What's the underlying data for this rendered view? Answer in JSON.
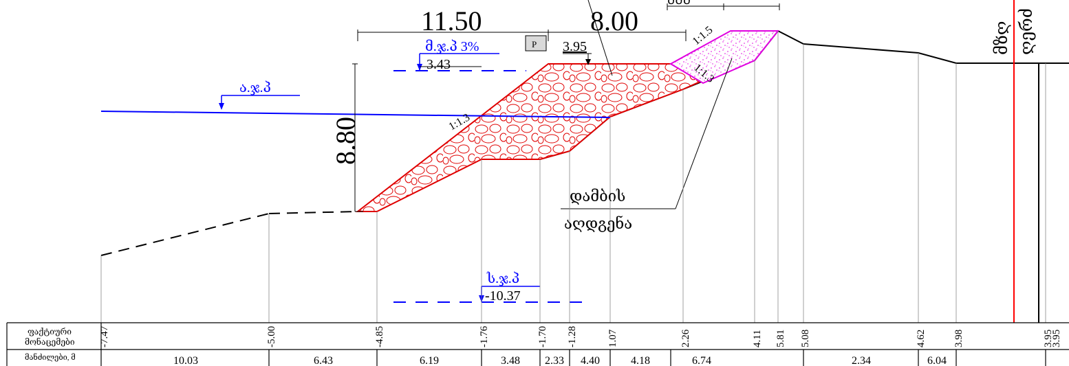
{
  "dimensions": {
    "crest_width": "11.50",
    "slope_width": "8.00",
    "height": "8.80",
    "top_cut_label": "ᲛᲛᲛ",
    "top_value": "3.95"
  },
  "labels": {
    "design_level": "მ.ჯ.პ 3%",
    "design_level_value": "3.43",
    "low_level": "ს.ჯ.პ",
    "low_level_value": "-10.37",
    "water_level": "ა.ჯ.პ",
    "p_marker": "P",
    "slope_1": "1:1.5",
    "slope_2": "1:1.3",
    "slope_3": "1:1.3",
    "fill_note_line1": "დამბის",
    "fill_note_line2": "აღდგენა",
    "right_vertical_1": "მზღ",
    "right_vertical_2": "ღერძ"
  },
  "table": {
    "row1_header_line1": "ფაქტიური",
    "row1_header_line2": "მონაცემები",
    "row2_header": "მანძილები, მ",
    "elevations": [
      "-7.47",
      "-5.00",
      "-4.85",
      "-1.76",
      "-1.70",
      "-1.28",
      "1.07",
      "2.26",
      "4.11",
      "5.81",
      "5.08",
      "4.62",
      "3.98",
      "3.95",
      "3.95"
    ],
    "distances": [
      "10.03",
      "6.43",
      "6.19",
      "3.48",
      "2.33",
      "4.40",
      "4.18",
      "6.74",
      "2.34",
      "6.04"
    ]
  },
  "colors": {
    "dam": "#e00000",
    "fill_restore": "#e000e0",
    "water": "#0000ff",
    "axis": "#ff0000"
  }
}
